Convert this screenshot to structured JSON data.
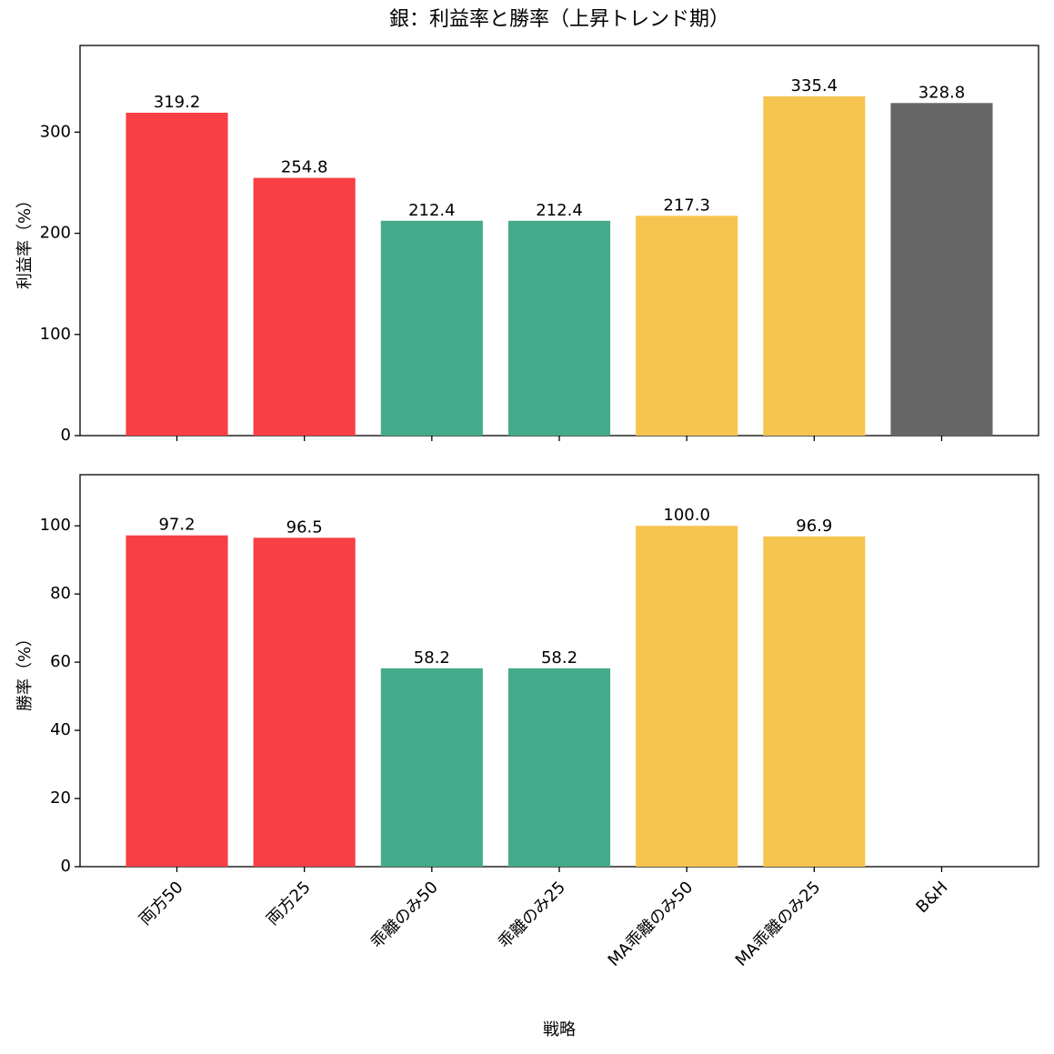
{
  "title": "銀：利益率と勝率（上昇トレンド期）",
  "chart_data": [
    {
      "type": "bar",
      "ylabel": "利益率（%）",
      "values": [
        319.2,
        254.8,
        212.4,
        212.4,
        217.3,
        335.4,
        328.8
      ],
      "colors": [
        "#f73f45",
        "#f73f45",
        "#45aa8b",
        "#45aa8b",
        "#f6c54f",
        "#f6c54f",
        "#666666"
      ],
      "ylim": [
        0,
        385.7
      ],
      "yticks": [
        0,
        100,
        200,
        300
      ],
      "grid": false
    },
    {
      "type": "bar",
      "ylabel": "勝率（%）",
      "xlabel": "戦略",
      "categories": [
        "両方50",
        "両方25",
        "乖離のみ50",
        "乖離のみ25",
        "MA乖離のみ50",
        "MA乖離のみ25",
        "B&H"
      ],
      "values": [
        97.2,
        96.5,
        58.2,
        58.2,
        100.0,
        96.9,
        null
      ],
      "value_labels": [
        "97.2",
        "96.5",
        "58.2",
        "58.2",
        "100.0",
        "96.9",
        null
      ],
      "colors": [
        "#f73f45",
        "#f73f45",
        "#45aa8b",
        "#45aa8b",
        "#f6c54f",
        "#f6c54f",
        "#666666"
      ],
      "ylim": [
        0,
        115
      ],
      "yticks": [
        0,
        20,
        40,
        60,
        80,
        100
      ],
      "grid": false
    }
  ]
}
